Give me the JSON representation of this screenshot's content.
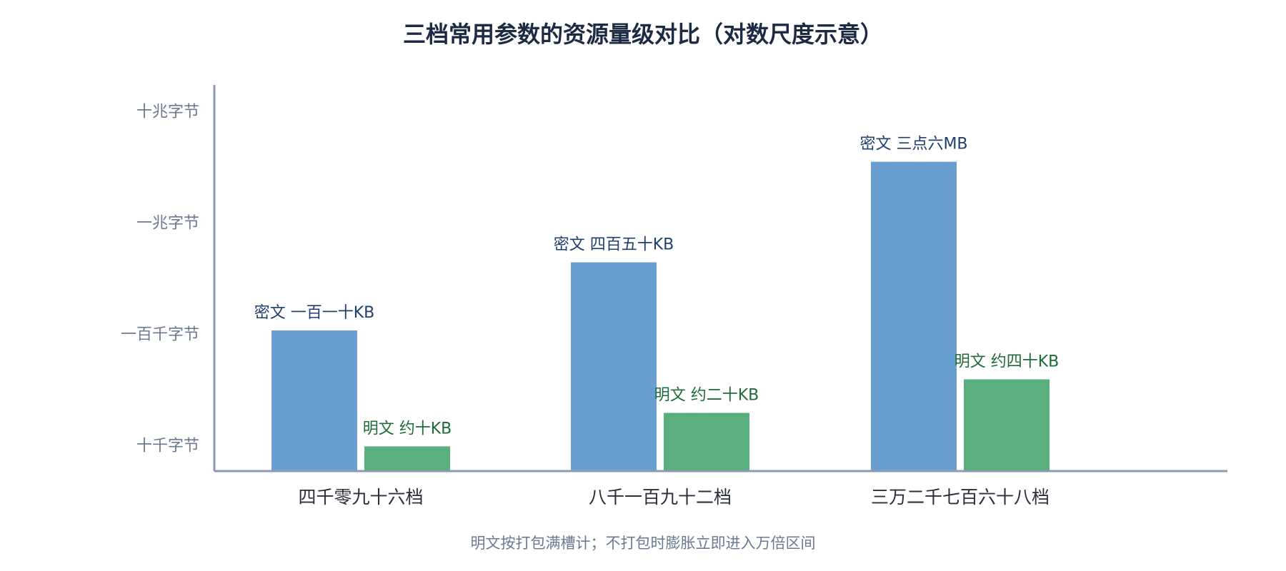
{
  "chart_data": {
    "type": "bar",
    "title": "三档常用参数的资源量级对比（对数尺度示意）",
    "categories": [
      "四千零九十六档",
      "八千一百九十二档",
      "三万二千七百六十八档"
    ],
    "series": [
      {
        "color": "#699ed0",
        "label_color": "#1f3f6e",
        "values": [
          110,
          450,
          3600
        ],
        "value_labels": [
          "密文 一百一十KB",
          "密文 四百五十KB",
          "密文 三点六MB"
        ]
      },
      {
        "color": "#5aaf7f",
        "label_color": "#1e6b3a",
        "values": [
          10,
          20,
          40
        ],
        "value_labels": [
          "明文 约十KB",
          "明文 约二十KB",
          "明文 约四十KB"
        ]
      }
    ],
    "log_scale": true,
    "ylim": [
      6,
      15000
    ],
    "yticks": [
      {
        "value": 10,
        "label": "十千字节"
      },
      {
        "value": 100,
        "label": "一百千字节"
      },
      {
        "value": 1000,
        "label": "一兆字节"
      },
      {
        "value": 10000,
        "label": "十兆字节"
      }
    ],
    "grid": false,
    "note": "明文按打包满槽计；不打包时膨胀立即进入万倍区间"
  }
}
